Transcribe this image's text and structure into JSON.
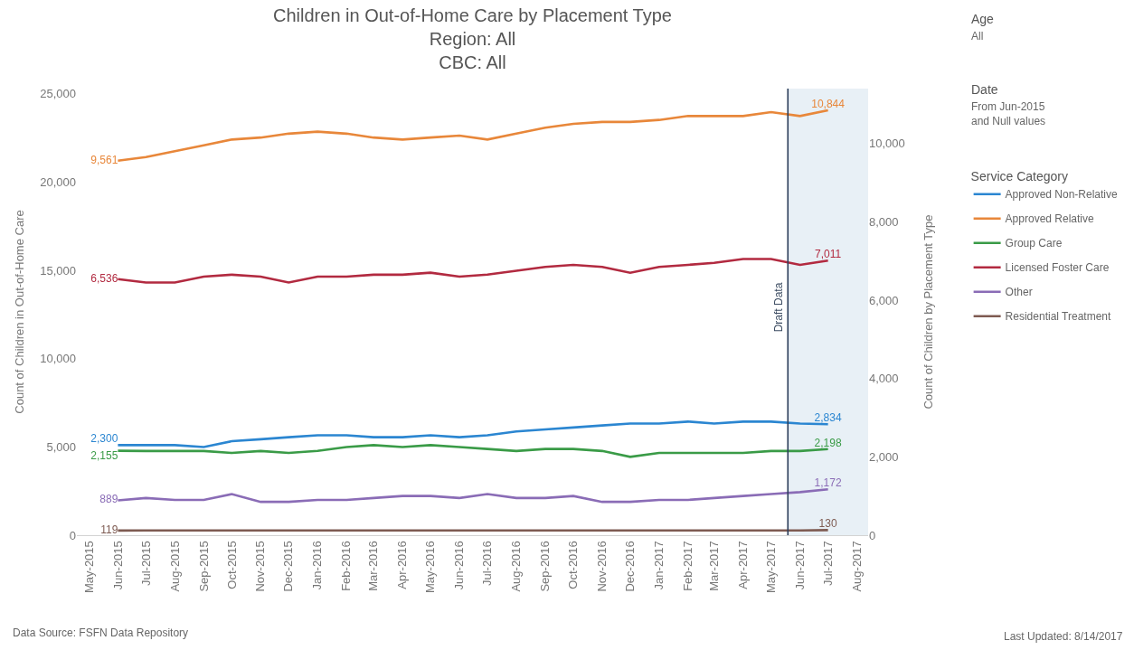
{
  "chart_data": {
    "type": "line",
    "title": "Children in Out-of-Home Care by Placement Type",
    "subtitle": "Region: All\nCBC: All",
    "ylabel": "Count of Children in Out-of-Home Care",
    "y2label": "Count of Children by Placement Type",
    "legend_title": "Service Category",
    "legend": "right",
    "annotations": [
      "Age",
      "All",
      "Date",
      "From Jun-2015 and Null values",
      "Data Source: FSFN Data Repository",
      "Last Updated: 8/14/2017"
    ],
    "x": [
      "2015-06",
      "2015-07",
      "2015-08",
      "2015-09",
      "2015-10",
      "2015-11",
      "2015-12",
      "2016-01",
      "2016-02",
      "2016-03",
      "2016-04",
      "2016-05",
      "2016-06",
      "2016-07",
      "2016-08",
      "2016-09",
      "2016-10",
      "2016-11",
      "2016-12",
      "2017-01",
      "2017-02",
      "2017-03",
      "2017-04",
      "2017-05",
      "2017-06",
      "2017-07"
    ],
    "xlim": [
      "2015-04-18",
      "2017-08-13"
    ],
    "xticks": [
      {
        "value": "2015-05",
        "label": "May-2015"
      },
      {
        "value": "2015-06",
        "label": "Jun-2015"
      },
      {
        "value": "2015-07",
        "label": "Jul-2015"
      },
      {
        "value": "2015-08",
        "label": "Aug-2015"
      },
      {
        "value": "2015-09",
        "label": "Sep-2015"
      },
      {
        "value": "2015-10",
        "label": "Oct-2015"
      },
      {
        "value": "2015-11",
        "label": "Nov-2015"
      },
      {
        "value": "2015-12",
        "label": "Dec-2015"
      },
      {
        "value": "2016-01",
        "label": "Jan-2016"
      },
      {
        "value": "2016-02",
        "label": "Feb-2016"
      },
      {
        "value": "2016-03",
        "label": "Mar-2016"
      },
      {
        "value": "2016-04",
        "label": "Apr-2016"
      },
      {
        "value": "2016-05",
        "label": "May-2016"
      },
      {
        "value": "2016-06",
        "label": "Jun-2016"
      },
      {
        "value": "2016-07",
        "label": "Jul-2016"
      },
      {
        "value": "2016-08",
        "label": "Aug-2016"
      },
      {
        "value": "2016-09",
        "label": "Sep-2016"
      },
      {
        "value": "2016-10",
        "label": "Oct-2016"
      },
      {
        "value": "2016-11",
        "label": "Nov-2016"
      },
      {
        "value": "2016-12",
        "label": "Dec-2016"
      },
      {
        "value": "2017-01",
        "label": "Jan-2017"
      },
      {
        "value": "2017-02",
        "label": "Feb-2017"
      },
      {
        "value": "2017-03",
        "label": "Mar-2017"
      },
      {
        "value": "2017-04",
        "label": "Apr-2017"
      },
      {
        "value": "2017-05",
        "label": "May-2017"
      },
      {
        "value": "2017-06",
        "label": "Jun-2017"
      },
      {
        "value": "2017-07",
        "label": "Jul-2017"
      },
      {
        "value": "2017-08",
        "label": "Aug-2017"
      }
    ],
    "ylim": [
      0,
      25300
    ],
    "yticks": [
      0,
      {
        "value": 5000,
        "label": "5,000"
      },
      {
        "value": 10000,
        "label": "10,000"
      },
      {
        "value": 15000,
        "label": "15,000"
      },
      {
        "value": 20000,
        "label": "20,000"
      },
      {
        "value": 25000,
        "label": "25,000"
      }
    ],
    "y2lim": [
      0,
      11400
    ],
    "y2ticks": [
      0,
      {
        "value": 2000,
        "label": "2,000"
      },
      {
        "value": 4000,
        "label": "4,000"
      },
      {
        "value": 6000,
        "label": "6,000"
      },
      {
        "value": 8000,
        "label": "8,000"
      },
      {
        "value": 10000,
        "label": "10,000"
      }
    ],
    "ref_lines": [
      {
        "axis": "x",
        "value": "2017-05-19",
        "label": "Draft Data",
        "color": "#2d3f5c"
      }
    ],
    "bands": [
      {
        "axis": "x",
        "from": "2017-05-19",
        "to": "2017-08-13",
        "color": "#e8f0f6"
      }
    ],
    "series": [
      {
        "name": "Approved Non-Relative",
        "color": "#2b86d1",
        "axis": "y2",
        "values": [
          2300,
          2300,
          2300,
          2250,
          2400,
          2450,
          2500,
          2550,
          2550,
          2500,
          2500,
          2550,
          2500,
          2550,
          2650,
          2700,
          2750,
          2800,
          2850,
          2850,
          2900,
          2850,
          2900,
          2900,
          2850,
          2834
        ],
        "value_labels": [
          "2,300",
          null,
          null,
          null,
          null,
          null,
          null,
          null,
          null,
          null,
          null,
          null,
          null,
          null,
          null,
          null,
          null,
          null,
          null,
          null,
          null,
          null,
          null,
          null,
          null,
          "2,834"
        ]
      },
      {
        "name": "Approved Relative",
        "color": "#e8873a",
        "axis": "y2",
        "values": [
          9561,
          9650,
          9800,
          9950,
          10100,
          10150,
          10250,
          10300,
          10250,
          10150,
          10100,
          10150,
          10200,
          10100,
          10250,
          10400,
          10500,
          10550,
          10550,
          10600,
          10700,
          10700,
          10700,
          10800,
          10700,
          10844
        ],
        "value_labels": [
          "9,561",
          null,
          null,
          null,
          null,
          null,
          null,
          null,
          null,
          null,
          null,
          null,
          null,
          null,
          null,
          null,
          null,
          null,
          null,
          null,
          null,
          null,
          null,
          null,
          null,
          "10,844"
        ]
      },
      {
        "name": "Group Care",
        "color": "#3a9b47",
        "axis": "y2",
        "values": [
          2155,
          2150,
          2150,
          2150,
          2100,
          2150,
          2100,
          2150,
          2250,
          2300,
          2250,
          2300,
          2250,
          2200,
          2150,
          2200,
          2200,
          2150,
          2000,
          2100,
          2100,
          2100,
          2100,
          2150,
          2150,
          2198
        ],
        "value_labels": [
          "2,155",
          null,
          null,
          null,
          null,
          null,
          null,
          null,
          null,
          null,
          null,
          null,
          null,
          null,
          null,
          null,
          null,
          null,
          null,
          null,
          null,
          null,
          null,
          null,
          null,
          "2,198"
        ]
      },
      {
        "name": "Licensed Foster Care",
        "color": "#b22a40",
        "axis": "y2",
        "values": [
          6536,
          6450,
          6450,
          6600,
          6650,
          6600,
          6450,
          6600,
          6600,
          6650,
          6650,
          6700,
          6600,
          6650,
          6750,
          6850,
          6900,
          6850,
          6700,
          6850,
          6900,
          6950,
          7050,
          7050,
          6900,
          7011
        ],
        "value_labels": [
          "6,536",
          null,
          null,
          null,
          null,
          null,
          null,
          null,
          null,
          null,
          null,
          null,
          null,
          null,
          null,
          null,
          null,
          null,
          null,
          null,
          null,
          null,
          null,
          null,
          null,
          "7,011"
        ]
      },
      {
        "name": "Other",
        "color": "#8a6cb6",
        "axis": "y2",
        "values": [
          889,
          950,
          900,
          900,
          1050,
          850,
          850,
          900,
          900,
          950,
          1000,
          1000,
          950,
          1050,
          950,
          950,
          1000,
          850,
          850,
          900,
          900,
          950,
          1000,
          1050,
          1100,
          1172
        ],
        "value_labels": [
          "889",
          null,
          null,
          null,
          null,
          null,
          null,
          null,
          null,
          null,
          null,
          null,
          null,
          null,
          null,
          null,
          null,
          null,
          null,
          null,
          null,
          null,
          null,
          null,
          null,
          "1,172"
        ]
      },
      {
        "name": "Residential Treatment",
        "color": "#7e5b52",
        "axis": "y2",
        "values": [
          119,
          120,
          120,
          120,
          120,
          120,
          120,
          120,
          120,
          120,
          120,
          120,
          120,
          120,
          120,
          120,
          120,
          120,
          120,
          120,
          120,
          120,
          120,
          120,
          120,
          130
        ],
        "value_labels": [
          "119",
          null,
          null,
          null,
          null,
          null,
          null,
          null,
          null,
          null,
          null,
          null,
          null,
          null,
          null,
          null,
          null,
          null,
          null,
          null,
          null,
          null,
          null,
          null,
          null,
          "130"
        ]
      }
    ]
  }
}
